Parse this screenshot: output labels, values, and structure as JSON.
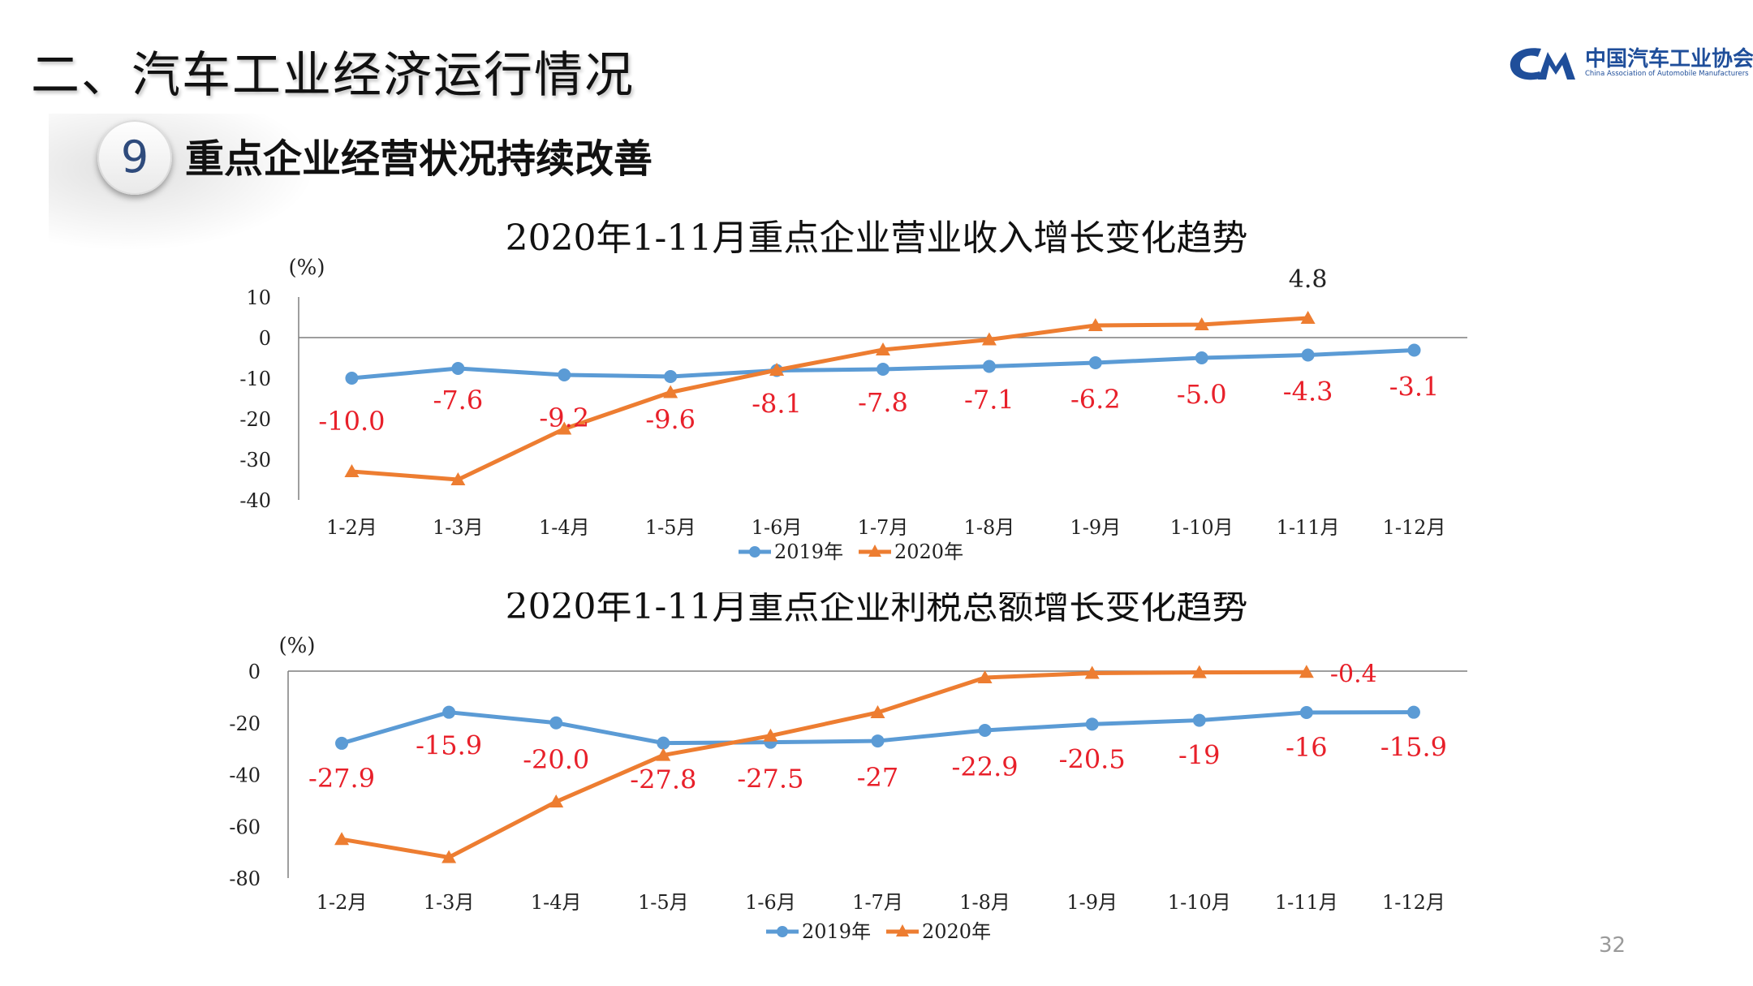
{
  "header": {
    "section_title": "二、汽车工业经济运行情况",
    "logo_cn": "中国汽车工业协会",
    "logo_en": "China Association of Automobile Manufacturers",
    "badge_number": "9",
    "subtitle": "重点企业经营状况持续改善",
    "page_number": "32"
  },
  "colors": {
    "series_2019": "#5b9bd5",
    "series_2020": "#ed7d31",
    "label_red": "#e8202a",
    "logo_blue": "#1f4e9a"
  },
  "chart_data": [
    {
      "type": "line",
      "title": "2020年1-11月重点企业营业收入增长变化趋势",
      "ylabel": "(%)",
      "ylim": [
        -40,
        10
      ],
      "yticks": [
        10,
        0,
        -10,
        -20,
        -30,
        -40
      ],
      "categories": [
        "1-2月",
        "1-3月",
        "1-4月",
        "1-5月",
        "1-6月",
        "1-7月",
        "1-8月",
        "1-9月",
        "1-10月",
        "1-11月",
        "1-12月"
      ],
      "series": [
        {
          "name": "2019年",
          "values": [
            -10.0,
            -7.6,
            -9.2,
            -9.6,
            -8.1,
            -7.8,
            -7.1,
            -6.2,
            -5.0,
            -4.3,
            -3.1
          ]
        },
        {
          "name": "2020年",
          "values": [
            -33,
            -35,
            -22.5,
            -13.5,
            -8,
            -3,
            -0.5,
            3,
            3.2,
            4.8,
            null
          ]
        }
      ],
      "data_labels": [
        "-10.0",
        "-7.6",
        "-9.2",
        "-9.6",
        "-8.1",
        "-7.8",
        "-7.1",
        "-6.2",
        "-5.0",
        "-4.3",
        "-3.1"
      ],
      "extra_label": "4.8",
      "legend": "bottom",
      "grid": false
    },
    {
      "type": "line",
      "title": "2020年1-11月重点企业利税总额增长变化趋势",
      "ylabel": "(%)",
      "ylim": [
        -80,
        0
      ],
      "yticks": [
        0,
        -20,
        -40,
        -60,
        -80
      ],
      "categories": [
        "1-2月",
        "1-3月",
        "1-4月",
        "1-5月",
        "1-6月",
        "1-7月",
        "1-8月",
        "1-9月",
        "1-10月",
        "1-11月",
        "1-12月"
      ],
      "series": [
        {
          "name": "2019年",
          "values": [
            -27.9,
            -15.9,
            -20.0,
            -27.8,
            -27.5,
            -27,
            -22.9,
            -20.5,
            -19,
            -16,
            -15.9
          ]
        },
        {
          "name": "2020年",
          "values": [
            -65,
            -72,
            -50.5,
            -32.5,
            -25,
            -16,
            -2.5,
            -0.8,
            -0.5,
            -0.4,
            null
          ]
        }
      ],
      "data_labels": [
        "-27.9",
        "-15.9",
        "-20.0",
        "-27.8",
        "-27.5",
        "-27",
        "-22.9",
        "-20.5",
        "-19",
        "-16",
        "-15.9"
      ],
      "extra_label": "-0.4",
      "legend": "bottom",
      "grid": false
    }
  ]
}
